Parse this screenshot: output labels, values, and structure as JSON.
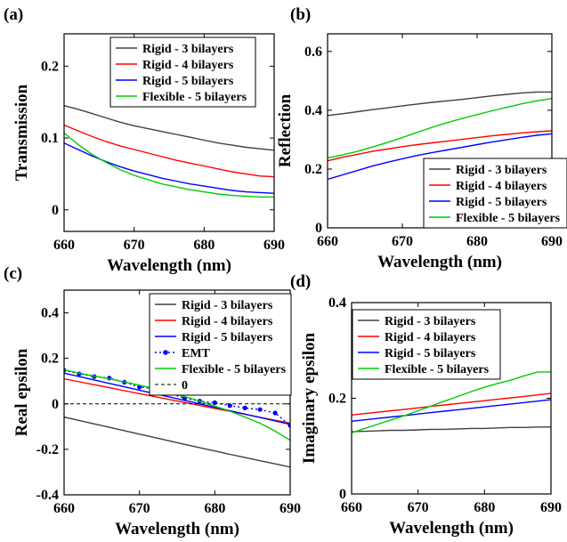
{
  "chart_data": [
    {
      "panel": "(a)",
      "type": "line",
      "xlabel": "Wavelength (nm)",
      "ylabel": "Transmission",
      "xlim": [
        660,
        690
      ],
      "ylim": [
        -0.03,
        0.245
      ],
      "xticks": [
        660,
        670,
        680,
        690
      ],
      "yticks": [
        0,
        0.1,
        0.2
      ],
      "xtick_labels": [
        "660",
        "670",
        "680",
        "690"
      ],
      "ytick_labels": [
        "0",
        "0.1",
        "0.2"
      ],
      "legend_position": "top-right",
      "x": [
        660,
        662,
        664,
        666,
        668,
        670,
        672,
        674,
        676,
        678,
        680,
        682,
        684,
        686,
        688,
        690
      ],
      "series": [
        {
          "name": "Rigid - 3 bilayers",
          "color": "#404040",
          "values": [
            0.145,
            0.14,
            0.134,
            0.128,
            0.122,
            0.117,
            0.113,
            0.109,
            0.105,
            0.101,
            0.097,
            0.093,
            0.09,
            0.087,
            0.085,
            0.083
          ]
        },
        {
          "name": "Rigid - 4 bilayers",
          "color": "#ff0000",
          "values": [
            0.118,
            0.11,
            0.102,
            0.095,
            0.089,
            0.084,
            0.079,
            0.074,
            0.069,
            0.065,
            0.061,
            0.057,
            0.053,
            0.05,
            0.047,
            0.046
          ]
        },
        {
          "name": "Rigid - 5 bilayers",
          "color": "#0000ff",
          "values": [
            0.093,
            0.084,
            0.075,
            0.067,
            0.06,
            0.054,
            0.049,
            0.044,
            0.04,
            0.036,
            0.033,
            0.03,
            0.027,
            0.025,
            0.024,
            0.023
          ]
        },
        {
          "name": "Flexible - 5 bilayers",
          "color": "#00cc00",
          "values": [
            0.107,
            0.091,
            0.077,
            0.066,
            0.056,
            0.048,
            0.042,
            0.036,
            0.032,
            0.028,
            0.025,
            0.022,
            0.02,
            0.019,
            0.018,
            0.018
          ]
        }
      ]
    },
    {
      "panel": "(b)",
      "type": "line",
      "xlabel": "Wavelength (nm)",
      "ylabel": "Reflection",
      "xlim": [
        660,
        690
      ],
      "ylim": [
        0,
        0.66
      ],
      "xticks": [
        660,
        670,
        680,
        690
      ],
      "yticks": [
        0,
        0.2,
        0.4,
        0.6
      ],
      "xtick_labels": [
        "660",
        "670",
        "680",
        "690"
      ],
      "ytick_labels": [
        "0",
        "0.2",
        "0.4",
        "0.6"
      ],
      "legend_position": "bottom-right",
      "x": [
        660,
        662,
        664,
        666,
        668,
        670,
        672,
        674,
        676,
        678,
        680,
        682,
        684,
        686,
        688,
        690
      ],
      "series": [
        {
          "name": "Rigid - 3 bilayers",
          "color": "#404040",
          "values": [
            0.382,
            0.388,
            0.395,
            0.402,
            0.408,
            0.415,
            0.421,
            0.427,
            0.432,
            0.437,
            0.443,
            0.449,
            0.454,
            0.459,
            0.462,
            0.462
          ]
        },
        {
          "name": "Rigid - 4 bilayers",
          "color": "#ff0000",
          "values": [
            0.228,
            0.24,
            0.25,
            0.26,
            0.268,
            0.276,
            0.283,
            0.289,
            0.295,
            0.301,
            0.307,
            0.313,
            0.318,
            0.323,
            0.327,
            0.33
          ]
        },
        {
          "name": "Rigid - 5 bilayers",
          "color": "#0000ff",
          "values": [
            0.165,
            0.18,
            0.195,
            0.21,
            0.223,
            0.235,
            0.246,
            0.256,
            0.265,
            0.274,
            0.283,
            0.292,
            0.3,
            0.308,
            0.315,
            0.32
          ]
        },
        {
          "name": "Flexible - 5 bilayers",
          "color": "#00cc00",
          "values": [
            0.238,
            0.248,
            0.26,
            0.275,
            0.29,
            0.307,
            0.325,
            0.342,
            0.358,
            0.372,
            0.385,
            0.398,
            0.41,
            0.422,
            0.432,
            0.44
          ]
        }
      ]
    },
    {
      "panel": "(c)",
      "type": "line",
      "xlabel": "Wavelength (nm)",
      "ylabel": "Real epsilon",
      "xlim": [
        660,
        690
      ],
      "ylim": [
        -0.4,
        0.5
      ],
      "xticks": [
        660,
        670,
        680,
        690
      ],
      "yticks": [
        -0.4,
        -0.2,
        0,
        0.2,
        0.4
      ],
      "xtick_labels": [
        "660",
        "670",
        "680",
        "690"
      ],
      "ytick_labels": [
        "-0.4",
        "-0.2",
        "0",
        "0.2",
        "0.4"
      ],
      "legend_position": "top-right",
      "x": [
        660,
        662,
        664,
        666,
        668,
        670,
        672,
        674,
        676,
        678,
        680,
        682,
        684,
        686,
        688,
        690
      ],
      "series": [
        {
          "name": "Rigid - 3 bilayers",
          "color": "#404040",
          "style": "solid",
          "values": [
            -0.058,
            -0.073,
            -0.088,
            -0.103,
            -0.118,
            -0.133,
            -0.148,
            -0.163,
            -0.178,
            -0.193,
            -0.207,
            -0.222,
            -0.236,
            -0.25,
            -0.264,
            -0.278
          ]
        },
        {
          "name": "Rigid - 4 bilayers",
          "color": "#ff0000",
          "style": "solid",
          "values": [
            0.11,
            0.097,
            0.084,
            0.071,
            0.058,
            0.045,
            0.032,
            0.019,
            0.006,
            -0.007,
            -0.02,
            -0.033,
            -0.046,
            -0.059,
            -0.072,
            -0.085
          ]
        },
        {
          "name": "Rigid - 5 bilayers",
          "color": "#0000ff",
          "style": "solid",
          "values": [
            0.135,
            0.12,
            0.105,
            0.09,
            0.075,
            0.06,
            0.045,
            0.03,
            0.015,
            0.0,
            -0.015,
            -0.03,
            -0.045,
            -0.06,
            -0.075,
            -0.09
          ]
        },
        {
          "name": "EMT",
          "color": "#0000ff",
          "style": "dotted-markers",
          "values": [
            0.148,
            0.132,
            0.12,
            0.113,
            0.095,
            0.074,
            0.066,
            0.046,
            0.025,
            0.012,
            0.005,
            -0.008,
            -0.018,
            -0.025,
            -0.04,
            -0.095
          ]
        },
        {
          "name": "Flexible - 5 bilayers",
          "color": "#00cc00",
          "style": "solid",
          "values": [
            0.15,
            0.135,
            0.122,
            0.11,
            0.096,
            0.082,
            0.067,
            0.05,
            0.032,
            0.012,
            -0.01,
            -0.032,
            -0.058,
            -0.085,
            -0.12,
            -0.16
          ]
        },
        {
          "name": "0",
          "color": "#000000",
          "style": "dashed",
          "values": [
            0,
            0,
            0,
            0,
            0,
            0,
            0,
            0,
            0,
            0,
            0,
            0,
            0,
            0,
            0,
            0
          ]
        }
      ]
    },
    {
      "panel": "(d)",
      "type": "line",
      "xlabel": "Wavelength (nm)",
      "ylabel": "Imaginary epsilon",
      "xlim": [
        660,
        690
      ],
      "ylim": [
        0,
        0.4
      ],
      "xticks": [
        660,
        670,
        680,
        690
      ],
      "yticks": [
        0,
        0.2,
        0.4
      ],
      "xtick_labels": [
        "660",
        "670",
        "680",
        "690"
      ],
      "ytick_labels": [
        "0",
        "0.2",
        "0.4"
      ],
      "legend_position": "top-left",
      "x": [
        660,
        662,
        664,
        666,
        668,
        670,
        672,
        674,
        676,
        678,
        680,
        682,
        684,
        686,
        688,
        690
      ],
      "series": [
        {
          "name": "Rigid - 3 bilayers",
          "color": "#404040",
          "values": [
            0.13,
            0.131,
            0.132,
            0.133,
            0.133,
            0.134,
            0.135,
            0.135,
            0.136,
            0.137,
            0.137,
            0.138,
            0.139,
            0.139,
            0.14,
            0.14
          ]
        },
        {
          "name": "Rigid - 4 bilayers",
          "color": "#ff0000",
          "values": [
            0.165,
            0.168,
            0.171,
            0.174,
            0.177,
            0.18,
            0.183,
            0.186,
            0.189,
            0.192,
            0.195,
            0.198,
            0.201,
            0.204,
            0.207,
            0.21
          ]
        },
        {
          "name": "Rigid - 5 bilayers",
          "color": "#0000ff",
          "values": [
            0.152,
            0.155,
            0.158,
            0.161,
            0.164,
            0.167,
            0.17,
            0.173,
            0.176,
            0.179,
            0.182,
            0.185,
            0.188,
            0.191,
            0.194,
            0.197
          ]
        },
        {
          "name": "Flexible - 5 bilayers",
          "color": "#00cc00",
          "values": [
            0.128,
            0.137,
            0.146,
            0.155,
            0.164,
            0.174,
            0.184,
            0.194,
            0.204,
            0.214,
            0.223,
            0.231,
            0.238,
            0.247,
            0.255,
            0.255
          ]
        }
      ]
    }
  ]
}
